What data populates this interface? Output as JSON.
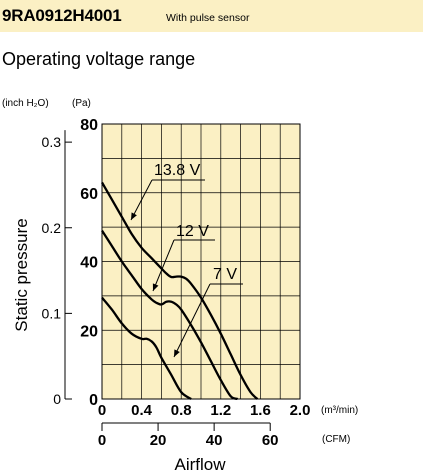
{
  "header": {
    "model": "9RA0912H4001",
    "note": "With pulse sensor"
  },
  "section_title": "Operating voltage range",
  "chart_data": {
    "type": "line",
    "title": "Operating voltage range",
    "xlabel": "Airflow",
    "ylabel": "Static pressure",
    "x_unit": "(m³/min)",
    "x2_unit": "(CFM)",
    "y_unit": "(Pa)",
    "y2_unit": "(inch H₂O)",
    "xlim": [
      0,
      2.0
    ],
    "ylim": [
      0,
      80
    ],
    "grid": true,
    "x_ticks": [
      "0",
      "0.4",
      "0.8",
      "1.2",
      "1.6",
      "2.0"
    ],
    "x2_ticks": [
      "0",
      "20",
      "40",
      "60"
    ],
    "y_ticks": [
      "0",
      "20",
      "40",
      "60",
      "80"
    ],
    "y2_ticks": [
      "0",
      "0.1",
      "0.2",
      "0.3"
    ],
    "series": [
      {
        "name": "13.8 V",
        "x": [
          0,
          0.1,
          0.2,
          0.3,
          0.4,
          0.5,
          0.6,
          0.65,
          0.7,
          0.75,
          0.8,
          0.85,
          0.9,
          1.0,
          1.1,
          1.2,
          1.3,
          1.4,
          1.5,
          1.57
        ],
        "y": [
          63,
          58,
          53,
          48,
          44,
          41,
          38,
          36.5,
          35.5,
          35.6,
          35.6,
          35,
          33.5,
          29.5,
          24.5,
          19,
          13,
          7,
          2,
          0
        ]
      },
      {
        "name": "12 V",
        "x": [
          0,
          0.1,
          0.2,
          0.3,
          0.4,
          0.5,
          0.55,
          0.6,
          0.65,
          0.7,
          0.75,
          0.8,
          0.9,
          1.0,
          1.1,
          1.2,
          1.3,
          1.37
        ],
        "y": [
          49,
          44.5,
          40,
          36,
          32,
          29,
          28,
          27.5,
          28.3,
          28.3,
          27.5,
          26,
          21.5,
          16.5,
          11,
          5.5,
          0.8,
          0
        ]
      },
      {
        "name": "7 V",
        "x": [
          0,
          0.1,
          0.2,
          0.3,
          0.4,
          0.45,
          0.5,
          0.55,
          0.6,
          0.7,
          0.8,
          0.9
        ],
        "y": [
          29.5,
          26,
          22,
          19,
          17.5,
          17.5,
          16.8,
          15,
          12,
          7,
          2,
          0
        ]
      }
    ],
    "labels": [
      "13.8 V",
      "12 V",
      "7 V"
    ]
  }
}
